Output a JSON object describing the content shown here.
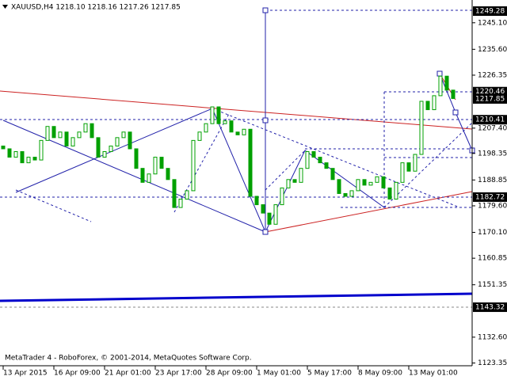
{
  "chart_data": {
    "type": "candlestick",
    "title": "XAUUSD,H4 1218.10 1218.16 1217.26 1217.85",
    "footer": "MetaTrader 4 - RoboForex, © 2001-2014, MetaQuotes Software Corp.",
    "color": "#00a000",
    "open": [
      1201,
      1200,
      1197,
      1199,
      1195,
      1197,
      1196,
      1203,
      1208,
      1204,
      1206,
      1201,
      1204,
      1206,
      1209,
      1204,
      1197,
      1199,
      1201,
      1204,
      1206,
      1200,
      1193,
      1188,
      1191,
      1197,
      1193,
      1189,
      1179,
      1182,
      1185,
      1203,
      1206,
      1209,
      1215,
      1209,
      1210,
      1206,
      1205,
      1207,
      1183,
      1180,
      1177,
      1173,
      1180,
      1186,
      1189,
      1188,
      1193,
      1199,
      1197,
      1195,
      1193,
      1189,
      1184,
      1183,
      1185,
      1189,
      1187,
      1188,
      1190,
      1186,
      1182,
      1188,
      1195,
      1192,
      1198,
      1217,
      1214,
      1219,
      1226,
      1221
    ],
    "close": [
      1200,
      1197,
      1199,
      1195,
      1197,
      1196,
      1203,
      1208,
      1204,
      1206,
      1201,
      1204,
      1206,
      1209,
      1204,
      1197,
      1199,
      1201,
      1204,
      1206,
      1200,
      1193,
      1188,
      1191,
      1197,
      1193,
      1189,
      1179,
      1182,
      1185,
      1203,
      1206,
      1209,
      1215,
      1209,
      1210,
      1206,
      1205,
      1207,
      1183,
      1180,
      1177,
      1173,
      1180,
      1186,
      1189,
      1188,
      1193,
      1199,
      1197,
      1195,
      1193,
      1189,
      1184,
      1183,
      1185,
      1189,
      1187,
      1188,
      1190,
      1186,
      1182,
      1188,
      1195,
      1192,
      1198,
      1217,
      1214,
      1219,
      1226,
      1221,
      1218
    ],
    "xlim": [
      -0.5,
      74
    ],
    "xticks": [
      {
        "value": 0,
        "label": "13 Apr 2015"
      },
      {
        "value": 8,
        "label": "16 Apr 09:00"
      },
      {
        "value": 16,
        "label": "21 Apr 01:00"
      },
      {
        "value": 24,
        "label": "23 Apr 17:00"
      },
      {
        "value": 32,
        "label": "28 Apr 09:00"
      },
      {
        "value": 40,
        "label": "1 May 01:00"
      },
      {
        "value": 48,
        "label": "5 May 17:00"
      },
      {
        "value": 56,
        "label": "8 May 09:00"
      },
      {
        "value": 64,
        "label": "13 May 01:00"
      }
    ],
    "ylim": [
      1122.37,
      1253.25
    ],
    "yticks": [
      {
        "value": 1245.1,
        "label": "1245.10"
      },
      {
        "value": 1235.6,
        "label": "1235.60"
      },
      {
        "value": 1226.35,
        "label": "1226.35"
      },
      {
        "value": 1207.4,
        "label": "1207.40"
      },
      {
        "value": 1198.35,
        "label": "1198.35"
      },
      {
        "value": 1188.85,
        "label": "1188.85"
      },
      {
        "value": 1179.6,
        "label": "1179.60"
      },
      {
        "value": 1170.1,
        "label": "1170.10"
      },
      {
        "value": 1160.85,
        "label": "1160.85"
      },
      {
        "value": 1151.35,
        "label": "1151.35"
      },
      {
        "value": 1132.6,
        "label": "1132.60"
      },
      {
        "value": 1123.35,
        "label": "1123.35"
      }
    ],
    "price_labels": [
      {
        "value": 1249.28,
        "label": "1249.28"
      },
      {
        "value": 1220.46,
        "label": "1220.46"
      },
      {
        "value": 1217.85,
        "label": "1217.85"
      },
      {
        "value": 1210.41,
        "label": "1210.41"
      },
      {
        "value": 1182.72,
        "label": "1182.72"
      },
      {
        "value": 1143.32,
        "label": "1143.32"
      }
    ]
  }
}
